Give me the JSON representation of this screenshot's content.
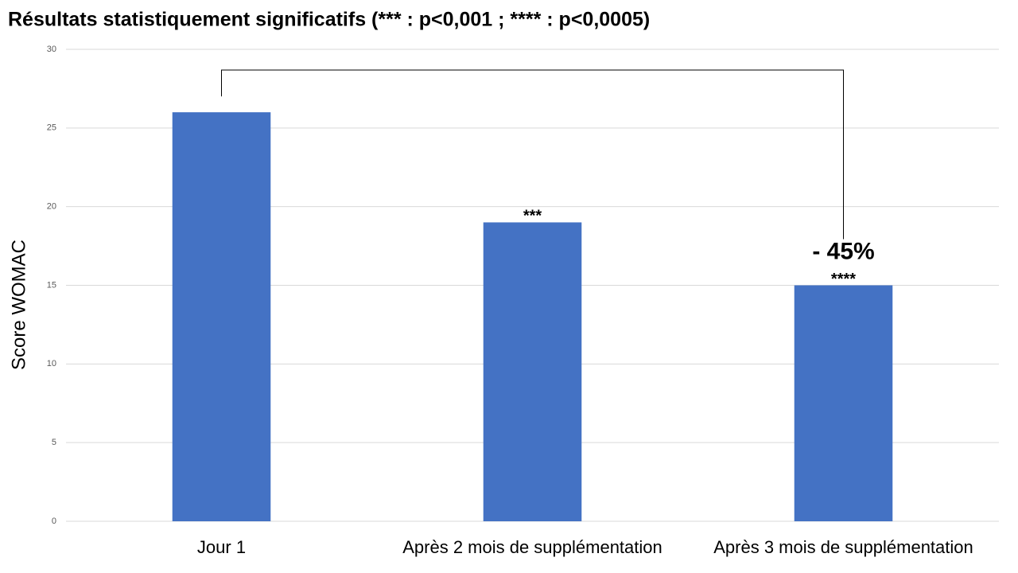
{
  "chart_data": {
    "type": "bar",
    "title": "Résultats statistiquement significatifs (*** : p<0,001 ; **** : p<0,0005)",
    "y_label": "Score WOMAC",
    "categories": [
      "Jour 1",
      "Après 2 mois de supplémentation",
      "Après 3 mois de supplémentation"
    ],
    "values": [
      26,
      19,
      15
    ],
    "significance": [
      null,
      "***",
      "****"
    ],
    "change_label": "- 45%",
    "color": "#4472c4",
    "ylim": [
      0,
      30
    ],
    "yticks": [
      0,
      5,
      10,
      15,
      20,
      25,
      30
    ],
    "grid": true
  }
}
